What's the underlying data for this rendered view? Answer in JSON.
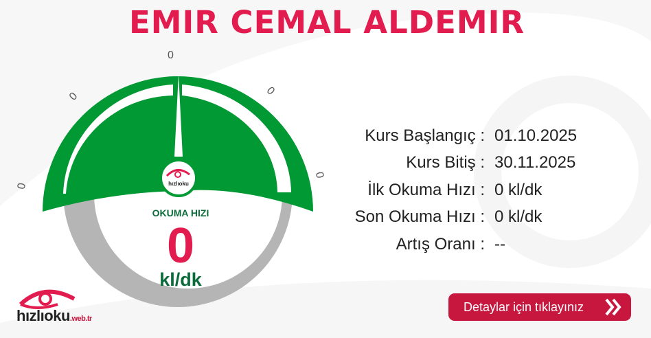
{
  "title": "EMIR CEMAL ALDEMIR",
  "gauge": {
    "label": "OKUMA HIZI",
    "value": "0",
    "unit": "kl/dk",
    "ticks": [
      "0",
      "0",
      "0",
      "0",
      "0"
    ],
    "logo_text": "hızlıoku",
    "logo_sub": ".web.tr",
    "colors": {
      "green": "#009933",
      "gray": "#b5b5b5",
      "red": "#e21c4f"
    }
  },
  "info": [
    {
      "label": "Kurs Başlangıç :",
      "value": "01.10.2025"
    },
    {
      "label": "Kurs Bitiş :",
      "value": "30.11.2025"
    },
    {
      "label": "İlk Okuma Hızı :",
      "value": "0 kl/dk"
    },
    {
      "label": "Son Okuma Hızı :",
      "value": "0 kl/dk"
    },
    {
      "label": "Artış Oranı :",
      "value": "--"
    }
  ],
  "button": {
    "label": "Detaylar için tıklayınız",
    "icon": "double-chevron-right-icon",
    "color": "#c8173f"
  },
  "brand": {
    "name": "hızlıoku",
    "suffix": ".web.tr"
  }
}
